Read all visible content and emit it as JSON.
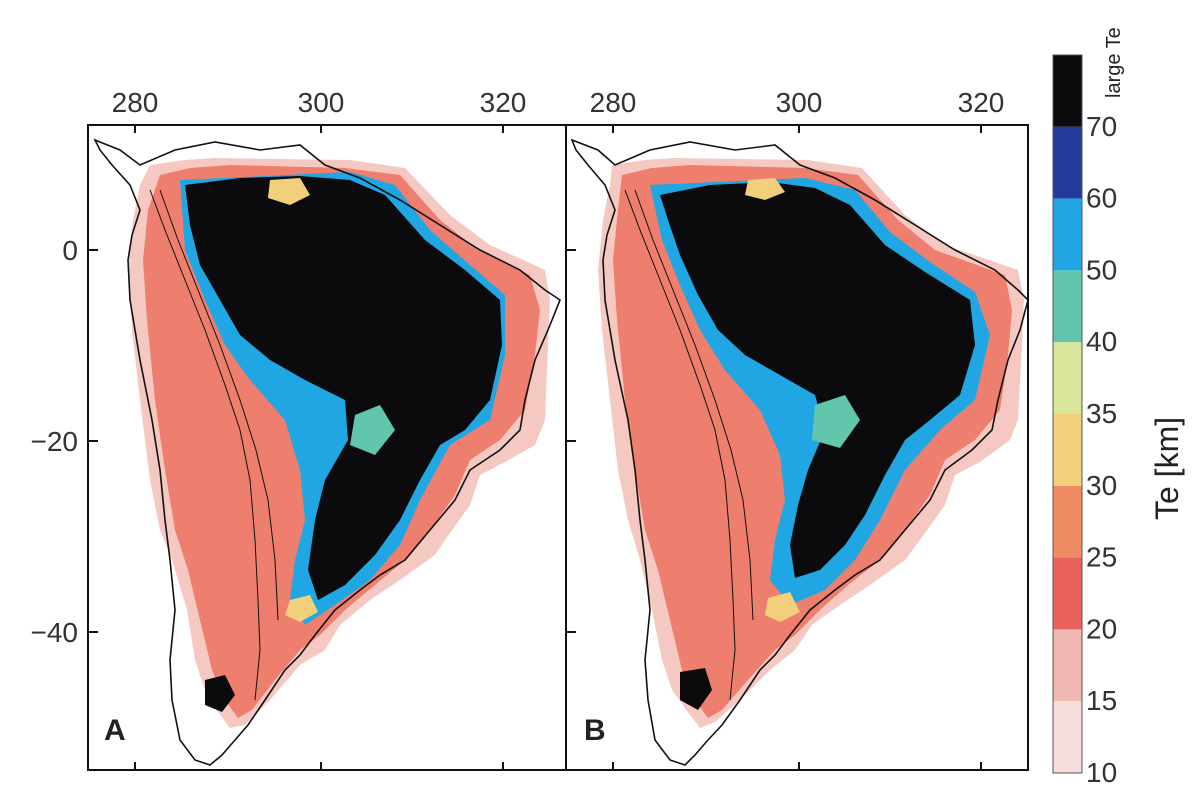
{
  "figure": {
    "panels": [
      {
        "label": "A"
      },
      {
        "label": "B"
      }
    ],
    "lon_ticks": [
      "280",
      "300",
      "320"
    ],
    "lat_ticks": [
      "0",
      "−20",
      "−40"
    ],
    "colorbar": {
      "title": "Te [km]",
      "top_label": "large Te",
      "tick_labels": [
        "70",
        "60",
        "50",
        "40",
        "35",
        "30",
        "25",
        "20",
        "15",
        "10"
      ],
      "swatches": [
        "#0b0b0e",
        "#233a99",
        "#1fa6e3",
        "#62c6ad",
        "#d9e69a",
        "#f2cf7a",
        "#ef8c64",
        "#ea625d",
        "#f0b6b1",
        "#f7dcdc"
      ]
    },
    "colors": {
      "land_low": "#ee7e6e",
      "land_edge": "#f5c9c2",
      "craton": "#0b0b0e",
      "transition_blue": "#1fa6e3",
      "transition_teal": "#62c6ad",
      "transition_yellow": "#f2cf7a",
      "frame": "#111111"
    }
  }
}
